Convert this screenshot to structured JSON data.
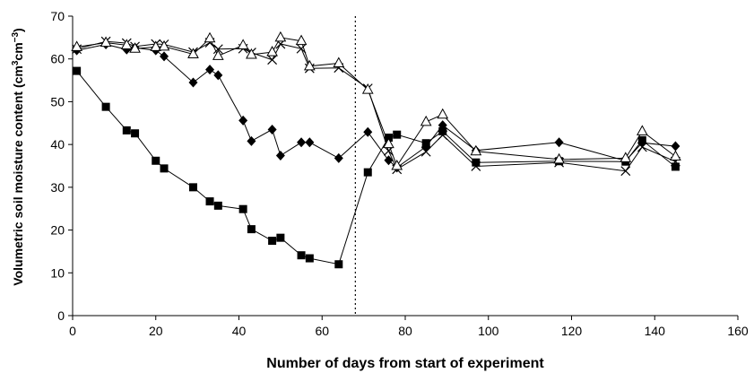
{
  "chart_data": {
    "type": "line",
    "title": "",
    "xlabel": "Number of days from start of experiment",
    "ylabel_main": "Volumetric soil moisture content (cm",
    "ylabel_sup1": "3",
    "ylabel_mid": "cm",
    "ylabel_sup2": "−3",
    "ylabel_end": ")",
    "xlim": [
      0,
      160
    ],
    "ylim": [
      0,
      70
    ],
    "x_ticks": [
      0,
      20,
      40,
      60,
      80,
      100,
      120,
      140,
      160
    ],
    "y_ticks": [
      0,
      10,
      20,
      30,
      40,
      50,
      60,
      70
    ],
    "grid": false,
    "legend": "none",
    "vertical_reference_line": {
      "x": 68,
      "style": "dotted"
    },
    "series": [
      {
        "marker": "square-filled",
        "x": [
          1,
          8,
          13,
          15,
          20,
          22,
          29,
          33,
          35,
          41,
          43,
          48,
          50,
          55,
          57,
          64,
          71,
          76,
          78,
          85,
          89,
          97,
          117,
          133,
          137,
          145
        ],
        "y": [
          57.2,
          48.8,
          43.3,
          42.6,
          36.2,
          34.4,
          30.0,
          26.7,
          25.7,
          24.9,
          20.2,
          17.5,
          18.2,
          14.1,
          13.4,
          12.0,
          33.5,
          41.6,
          42.3,
          40.3,
          43.1,
          35.8,
          36.1,
          36.0,
          41.0,
          34.8
        ]
      },
      {
        "marker": "diamond-filled",
        "x": [
          1,
          8,
          13,
          15,
          20,
          22,
          29,
          33,
          35,
          41,
          43,
          48,
          50,
          55,
          57,
          64,
          71,
          76,
          78,
          85,
          89,
          97,
          117,
          133,
          137,
          145
        ],
        "y": [
          62.0,
          63.4,
          62.2,
          62.6,
          62.0,
          60.6,
          54.5,
          57.5,
          56.2,
          45.6,
          40.8,
          43.5,
          37.4,
          40.5,
          40.5,
          36.8,
          42.9,
          36.3,
          34.6,
          39.5,
          44.5,
          38.6,
          40.5,
          36.2,
          40.4,
          39.6
        ]
      },
      {
        "marker": "cross",
        "x": [
          1,
          8,
          13,
          15,
          20,
          22,
          29,
          33,
          35,
          41,
          43,
          48,
          50,
          55,
          57,
          64,
          71,
          76,
          78,
          85,
          89,
          97,
          117,
          133,
          137,
          145
        ],
        "y": [
          62.3,
          64.1,
          63.7,
          62.9,
          63.5,
          63.4,
          61.6,
          63.8,
          62.3,
          62.4,
          61.5,
          59.8,
          63.5,
          62.4,
          57.8,
          57.9,
          53.1,
          38.5,
          34.2,
          38.3,
          42.2,
          34.9,
          35.8,
          33.8,
          39.4,
          36.0
        ]
      },
      {
        "marker": "triangle-open",
        "x": [
          1,
          8,
          13,
          15,
          20,
          22,
          29,
          33,
          35,
          41,
          43,
          48,
          50,
          55,
          57,
          64,
          71,
          76,
          78,
          85,
          89,
          97,
          117,
          133,
          137,
          145
        ],
        "y": [
          62.8,
          63.8,
          63.2,
          62.4,
          62.8,
          62.9,
          61.1,
          64.8,
          60.7,
          63.2,
          61.0,
          61.6,
          65.0,
          64.2,
          58.3,
          59.0,
          52.8,
          40.1,
          35.0,
          45.3,
          47.0,
          38.4,
          36.5,
          36.8,
          43.1,
          37.2
        ]
      }
    ]
  }
}
